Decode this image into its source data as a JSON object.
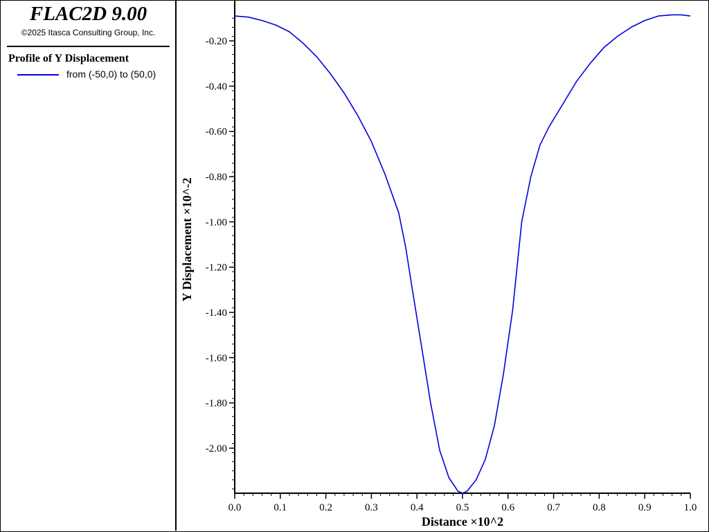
{
  "app": {
    "title": "FLAC2D 9.00",
    "copyright": "©2025 Itasca Consulting Group, Inc."
  },
  "legend": {
    "title": "Profile of Y Displacement",
    "entries": [
      {
        "label": "from (-50,0) to (50,0)",
        "color": "#0000dd"
      }
    ]
  },
  "colors": {
    "line": "#0000dd",
    "axes": "#000000",
    "background": "#ffffff"
  },
  "chart_data": {
    "type": "line",
    "title": "",
    "xlabel": "Distance ×10^2",
    "ylabel": "Y Displacement ×10^-2",
    "xlim": [
      0.0,
      1.0
    ],
    "ylim": [
      -2.2,
      -0.1
    ],
    "grid": false,
    "legend_position": "left-panel",
    "x_ticks": [
      "0.0",
      "0.1",
      "0.2",
      "0.3",
      "0.4",
      "0.5",
      "0.6",
      "0.7",
      "0.8",
      "0.9",
      "1.0"
    ],
    "y_ticks": [
      "-0.20",
      "-0.40",
      "-0.60",
      "-0.80",
      "-1.00",
      "-1.20",
      "-1.40",
      "-1.60",
      "-1.80",
      "-2.00"
    ],
    "series": [
      {
        "name": "from (-50,0) to (50,0)",
        "x": [
          0.0,
          0.03,
          0.06,
          0.09,
          0.12,
          0.15,
          0.18,
          0.21,
          0.24,
          0.27,
          0.3,
          0.33,
          0.36,
          0.375,
          0.39,
          0.41,
          0.43,
          0.45,
          0.47,
          0.49,
          0.5,
          0.51,
          0.53,
          0.55,
          0.57,
          0.59,
          0.61,
          0.63,
          0.65,
          0.67,
          0.69,
          0.72,
          0.75,
          0.78,
          0.81,
          0.84,
          0.87,
          0.9,
          0.93,
          0.96,
          0.98,
          1.0
        ],
        "y": [
          -0.09,
          -0.095,
          -0.11,
          -0.13,
          -0.16,
          -0.21,
          -0.27,
          -0.345,
          -0.43,
          -0.53,
          -0.645,
          -0.79,
          -0.96,
          -1.11,
          -1.3,
          -1.55,
          -1.8,
          -2.01,
          -2.13,
          -2.19,
          -2.2,
          -2.19,
          -2.14,
          -2.05,
          -1.9,
          -1.67,
          -1.39,
          -1.0,
          -0.8,
          -0.66,
          -0.58,
          -0.48,
          -0.38,
          -0.3,
          -0.23,
          -0.18,
          -0.14,
          -0.11,
          -0.09,
          -0.085,
          -0.085,
          -0.09
        ]
      }
    ]
  }
}
